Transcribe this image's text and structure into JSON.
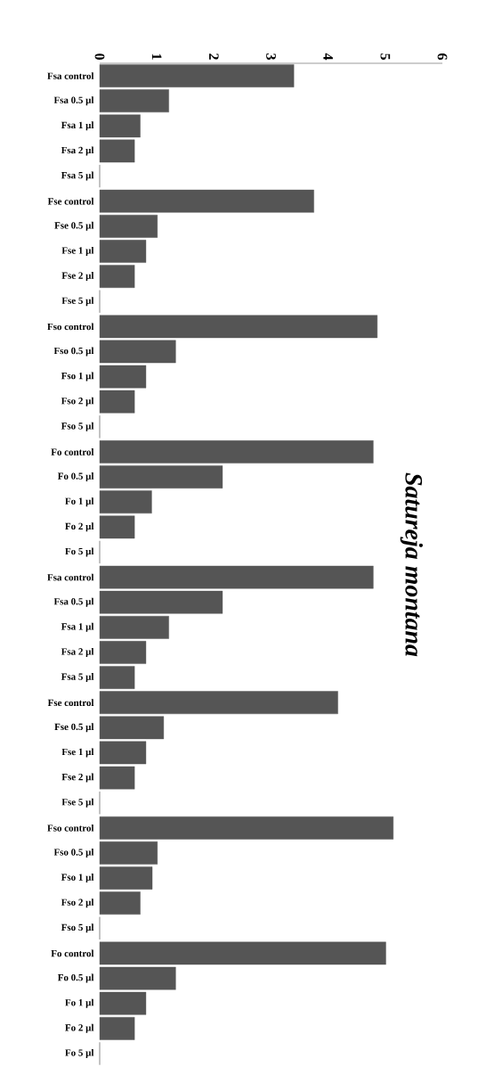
{
  "chart_data": {
    "type": "bar",
    "orientation": "horizontal",
    "title": "Satureja montana",
    "categories": [
      "Fsa control",
      "Fsa 0.5 µl",
      "Fsa 1 µl",
      "Fsa 2 µl",
      "Fsa 5 µl",
      "Fse control",
      "Fse 0.5 µl",
      "Fse 1 µl",
      "Fse 2 µl",
      "Fse 5 µl",
      "Fso control",
      "Fso 0.5 µl",
      "Fso 1 µl",
      "Fso 2 µl",
      "Fso 5 µl",
      "Fo control",
      "Fo 0.5 µl",
      "Fo 1 µl",
      "Fo 2 µl",
      "Fo 5 µl",
      "Fsa control",
      "Fsa 0.5 µl",
      "Fsa 1 µl",
      "Fsa 2 µl",
      "Fsa 5 µl",
      "Fse control",
      "Fse 0.5 µl",
      "Fse 1 µl",
      "Fse 2 µl",
      "Fse 5 µl",
      "Fso control",
      "Fso 0.5 µl",
      "Fso 1 µl",
      "Fso 2 µl",
      "Fso 5 µl",
      "Fo control",
      "Fo 0.5 µl",
      "Fo 1 µl",
      "Fo 2 µl",
      "Fo 5 µl"
    ],
    "values": [
      3.4,
      1.21,
      0.71,
      0.61,
      0,
      3.75,
      1.01,
      0.81,
      0.61,
      0,
      4.86,
      1.33,
      0.81,
      0.61,
      0,
      4.79,
      2.15,
      0.91,
      0.61,
      0,
      4.79,
      2.15,
      1.21,
      0.81,
      0.61,
      4.17,
      1.12,
      0.81,
      0.61,
      0,
      5.14,
      1.01,
      0.92,
      0.71,
      0,
      5.01,
      1.33,
      0.81,
      0.61,
      0
    ],
    "color": "#555555",
    "xlim": [
      0,
      6
    ],
    "xticks": [
      0,
      1,
      2,
      3,
      4,
      5,
      6
    ]
  }
}
